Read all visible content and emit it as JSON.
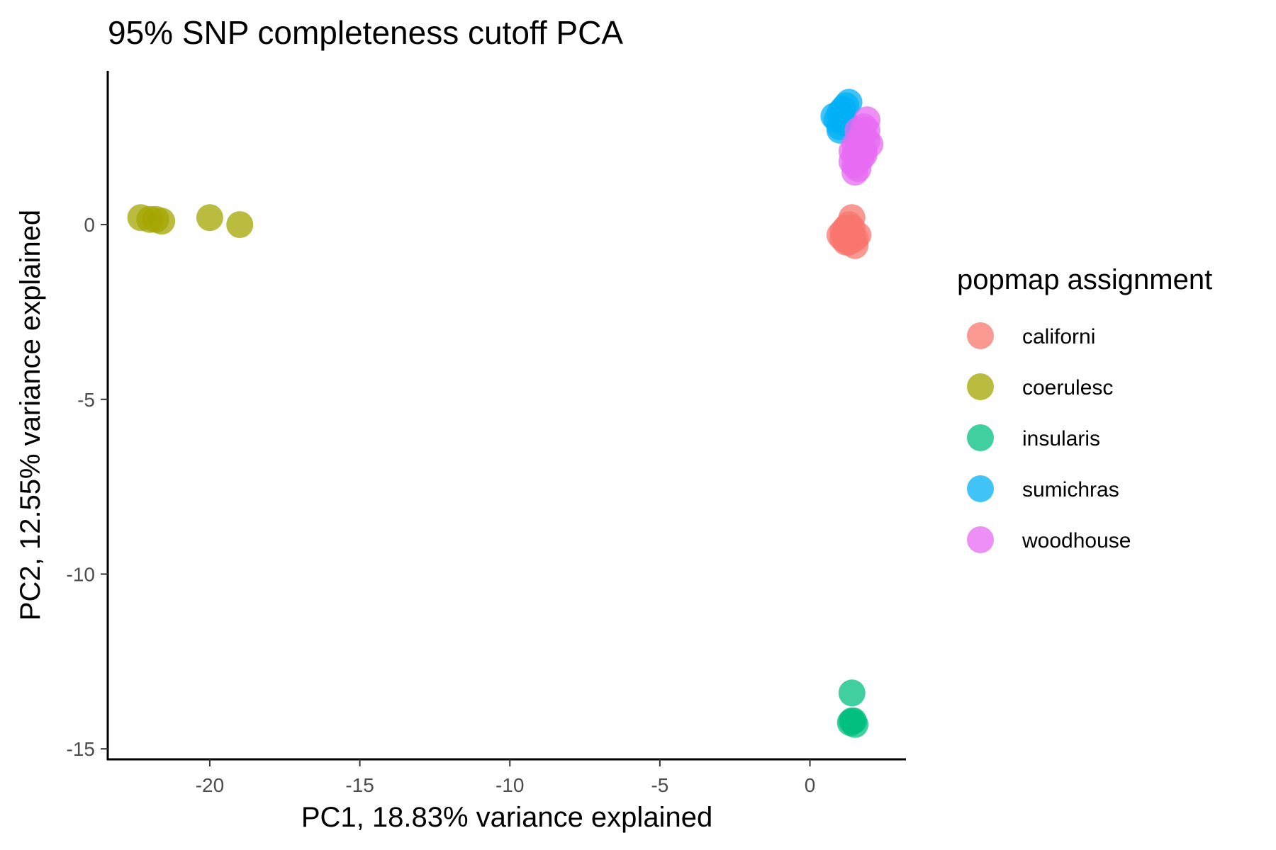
{
  "chart_data": {
    "type": "scatter",
    "title": "95% SNP completeness cutoff PCA",
    "xlabel": "PC1, 18.83% variance explained",
    "ylabel": "PC2, 12.55% variance explained",
    "xlim": [
      -23.4,
      3.2
    ],
    "ylim": [
      -15.3,
      4.4
    ],
    "xticks": [
      -20,
      -15,
      -10,
      -5,
      0
    ],
    "yticks": [
      0,
      -5,
      -10,
      -15
    ],
    "grid": false,
    "legend": {
      "title": "popmap assignment",
      "position": "right"
    },
    "series": [
      {
        "name": "californi",
        "color": "#F8766D",
        "points": [
          [
            1.0,
            -0.3
          ],
          [
            1.1,
            -0.4
          ],
          [
            1.2,
            -0.2
          ],
          [
            1.3,
            -0.5
          ],
          [
            1.4,
            -0.3
          ],
          [
            1.5,
            -0.4
          ],
          [
            1.2,
            -0.1
          ],
          [
            1.3,
            0.0
          ],
          [
            1.4,
            0.2
          ],
          [
            1.1,
            -0.2
          ],
          [
            1.5,
            -0.6
          ],
          [
            1.3,
            -0.3
          ],
          [
            1.2,
            -0.5
          ],
          [
            1.4,
            -0.1
          ],
          [
            1.6,
            -0.3
          ]
        ]
      },
      {
        "name": "coerulesc",
        "color": "#A3A500",
        "points": [
          [
            -22.3,
            0.2
          ],
          [
            -22.0,
            0.15
          ],
          [
            -21.8,
            0.15
          ],
          [
            -21.6,
            0.1
          ],
          [
            -20.0,
            0.2
          ],
          [
            -19.0,
            0.0
          ]
        ]
      },
      {
        "name": "insularis",
        "color": "#00BF7D",
        "points": [
          [
            1.4,
            -13.4
          ],
          [
            1.4,
            -14.2
          ],
          [
            1.5,
            -14.3
          ],
          [
            1.45,
            -14.2
          ],
          [
            1.35,
            -14.25
          ]
        ]
      },
      {
        "name": "sumichras",
        "color": "#00B0F6",
        "points": [
          [
            0.9,
            3.0
          ],
          [
            1.0,
            3.2
          ],
          [
            1.1,
            3.3
          ],
          [
            1.2,
            3.4
          ],
          [
            1.3,
            3.5
          ],
          [
            1.0,
            2.7
          ],
          [
            1.1,
            3.1
          ],
          [
            1.2,
            2.9
          ],
          [
            0.8,
            3.1
          ],
          [
            1.0,
            2.8
          ]
        ]
      },
      {
        "name": "woodhouse",
        "color": "#E76BF3",
        "points": [
          [
            1.5,
            2.0
          ],
          [
            1.6,
            2.2
          ],
          [
            1.7,
            2.5
          ],
          [
            1.8,
            2.8
          ],
          [
            1.9,
            3.0
          ],
          [
            1.4,
            1.8
          ],
          [
            1.5,
            1.5
          ],
          [
            1.6,
            1.6
          ],
          [
            1.7,
            1.9
          ],
          [
            1.8,
            2.1
          ],
          [
            1.9,
            2.4
          ],
          [
            2.0,
            2.3
          ],
          [
            1.5,
            2.3
          ],
          [
            1.6,
            2.7
          ],
          [
            1.8,
            2.0
          ],
          [
            1.4,
            2.1
          ],
          [
            1.7,
            2.2
          ],
          [
            1.9,
            2.7
          ],
          [
            1.6,
            1.9
          ],
          [
            1.5,
            1.7
          ]
        ]
      }
    ]
  }
}
